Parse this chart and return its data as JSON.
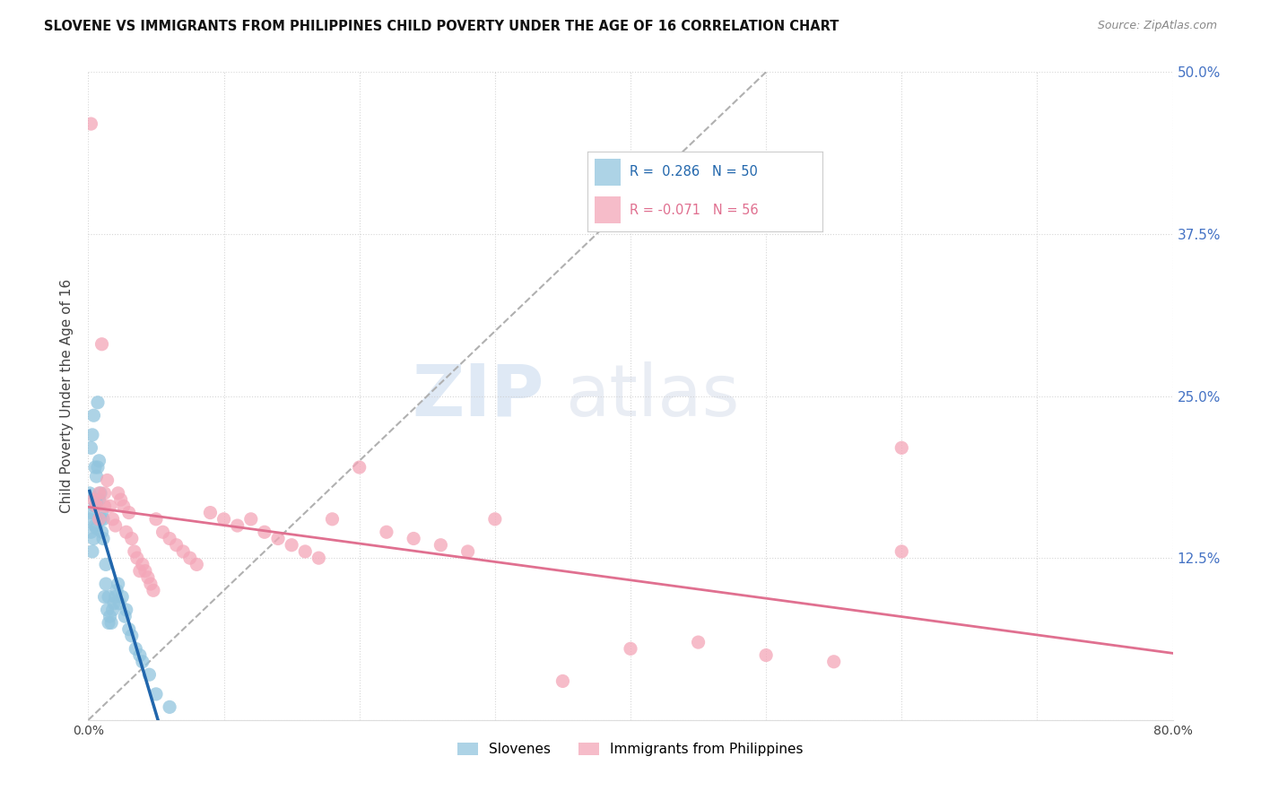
{
  "title": "SLOVENE VS IMMIGRANTS FROM PHILIPPINES CHILD POVERTY UNDER THE AGE OF 16 CORRELATION CHART",
  "source": "Source: ZipAtlas.com",
  "ylabel": "Child Poverty Under the Age of 16",
  "xlim": [
    0,
    0.8
  ],
  "ylim": [
    0,
    0.5
  ],
  "yticks": [
    0.0,
    0.125,
    0.25,
    0.375,
    0.5
  ],
  "ytick_labels": [
    "",
    "12.5%",
    "25.0%",
    "37.5%",
    "50.0%"
  ],
  "legend_label1": "Slovenes",
  "legend_label2": "Immigrants from Philippines",
  "blue_color": "#92c5de",
  "pink_color": "#f4a6b8",
  "blue_line_color": "#2166ac",
  "pink_line_color": "#e07090",
  "watermark_zip": "ZIP",
  "watermark_atlas": "atlas",
  "slovene_x": [
    0.001,
    0.001,
    0.002,
    0.002,
    0.002,
    0.003,
    0.003,
    0.004,
    0.004,
    0.005,
    0.005,
    0.005,
    0.006,
    0.006,
    0.006,
    0.007,
    0.007,
    0.008,
    0.008,
    0.009,
    0.009,
    0.01,
    0.01,
    0.011,
    0.011,
    0.012,
    0.013,
    0.013,
    0.014,
    0.015,
    0.015,
    0.016,
    0.017,
    0.018,
    0.019,
    0.02,
    0.021,
    0.022,
    0.023,
    0.025,
    0.027,
    0.028,
    0.03,
    0.032,
    0.035,
    0.038,
    0.04,
    0.045,
    0.05,
    0.06
  ],
  "slovene_y": [
    0.155,
    0.175,
    0.145,
    0.16,
    0.21,
    0.13,
    0.22,
    0.14,
    0.235,
    0.15,
    0.195,
    0.165,
    0.148,
    0.168,
    0.188,
    0.195,
    0.245,
    0.17,
    0.2,
    0.155,
    0.175,
    0.145,
    0.16,
    0.14,
    0.155,
    0.095,
    0.105,
    0.12,
    0.085,
    0.075,
    0.095,
    0.08,
    0.075,
    0.085,
    0.09,
    0.095,
    0.1,
    0.105,
    0.09,
    0.095,
    0.08,
    0.085,
    0.07,
    0.065,
    0.055,
    0.05,
    0.045,
    0.035,
    0.02,
    0.01
  ],
  "philippines_x": [
    0.002,
    0.004,
    0.006,
    0.008,
    0.01,
    0.012,
    0.014,
    0.016,
    0.018,
    0.02,
    0.022,
    0.024,
    0.026,
    0.028,
    0.03,
    0.032,
    0.034,
    0.036,
    0.038,
    0.04,
    0.042,
    0.044,
    0.046,
    0.048,
    0.05,
    0.055,
    0.06,
    0.065,
    0.07,
    0.075,
    0.08,
    0.09,
    0.1,
    0.11,
    0.12,
    0.13,
    0.14,
    0.15,
    0.16,
    0.17,
    0.18,
    0.2,
    0.22,
    0.24,
    0.26,
    0.28,
    0.3,
    0.35,
    0.4,
    0.45,
    0.5,
    0.55,
    0.6,
    0.008,
    0.012,
    0.6
  ],
  "philippines_y": [
    0.46,
    0.17,
    0.165,
    0.155,
    0.29,
    0.175,
    0.185,
    0.165,
    0.155,
    0.15,
    0.175,
    0.17,
    0.165,
    0.145,
    0.16,
    0.14,
    0.13,
    0.125,
    0.115,
    0.12,
    0.115,
    0.11,
    0.105,
    0.1,
    0.155,
    0.145,
    0.14,
    0.135,
    0.13,
    0.125,
    0.12,
    0.16,
    0.155,
    0.15,
    0.155,
    0.145,
    0.14,
    0.135,
    0.13,
    0.125,
    0.155,
    0.195,
    0.145,
    0.14,
    0.135,
    0.13,
    0.155,
    0.03,
    0.055,
    0.06,
    0.05,
    0.045,
    0.21,
    0.175,
    0.165,
    0.13
  ]
}
